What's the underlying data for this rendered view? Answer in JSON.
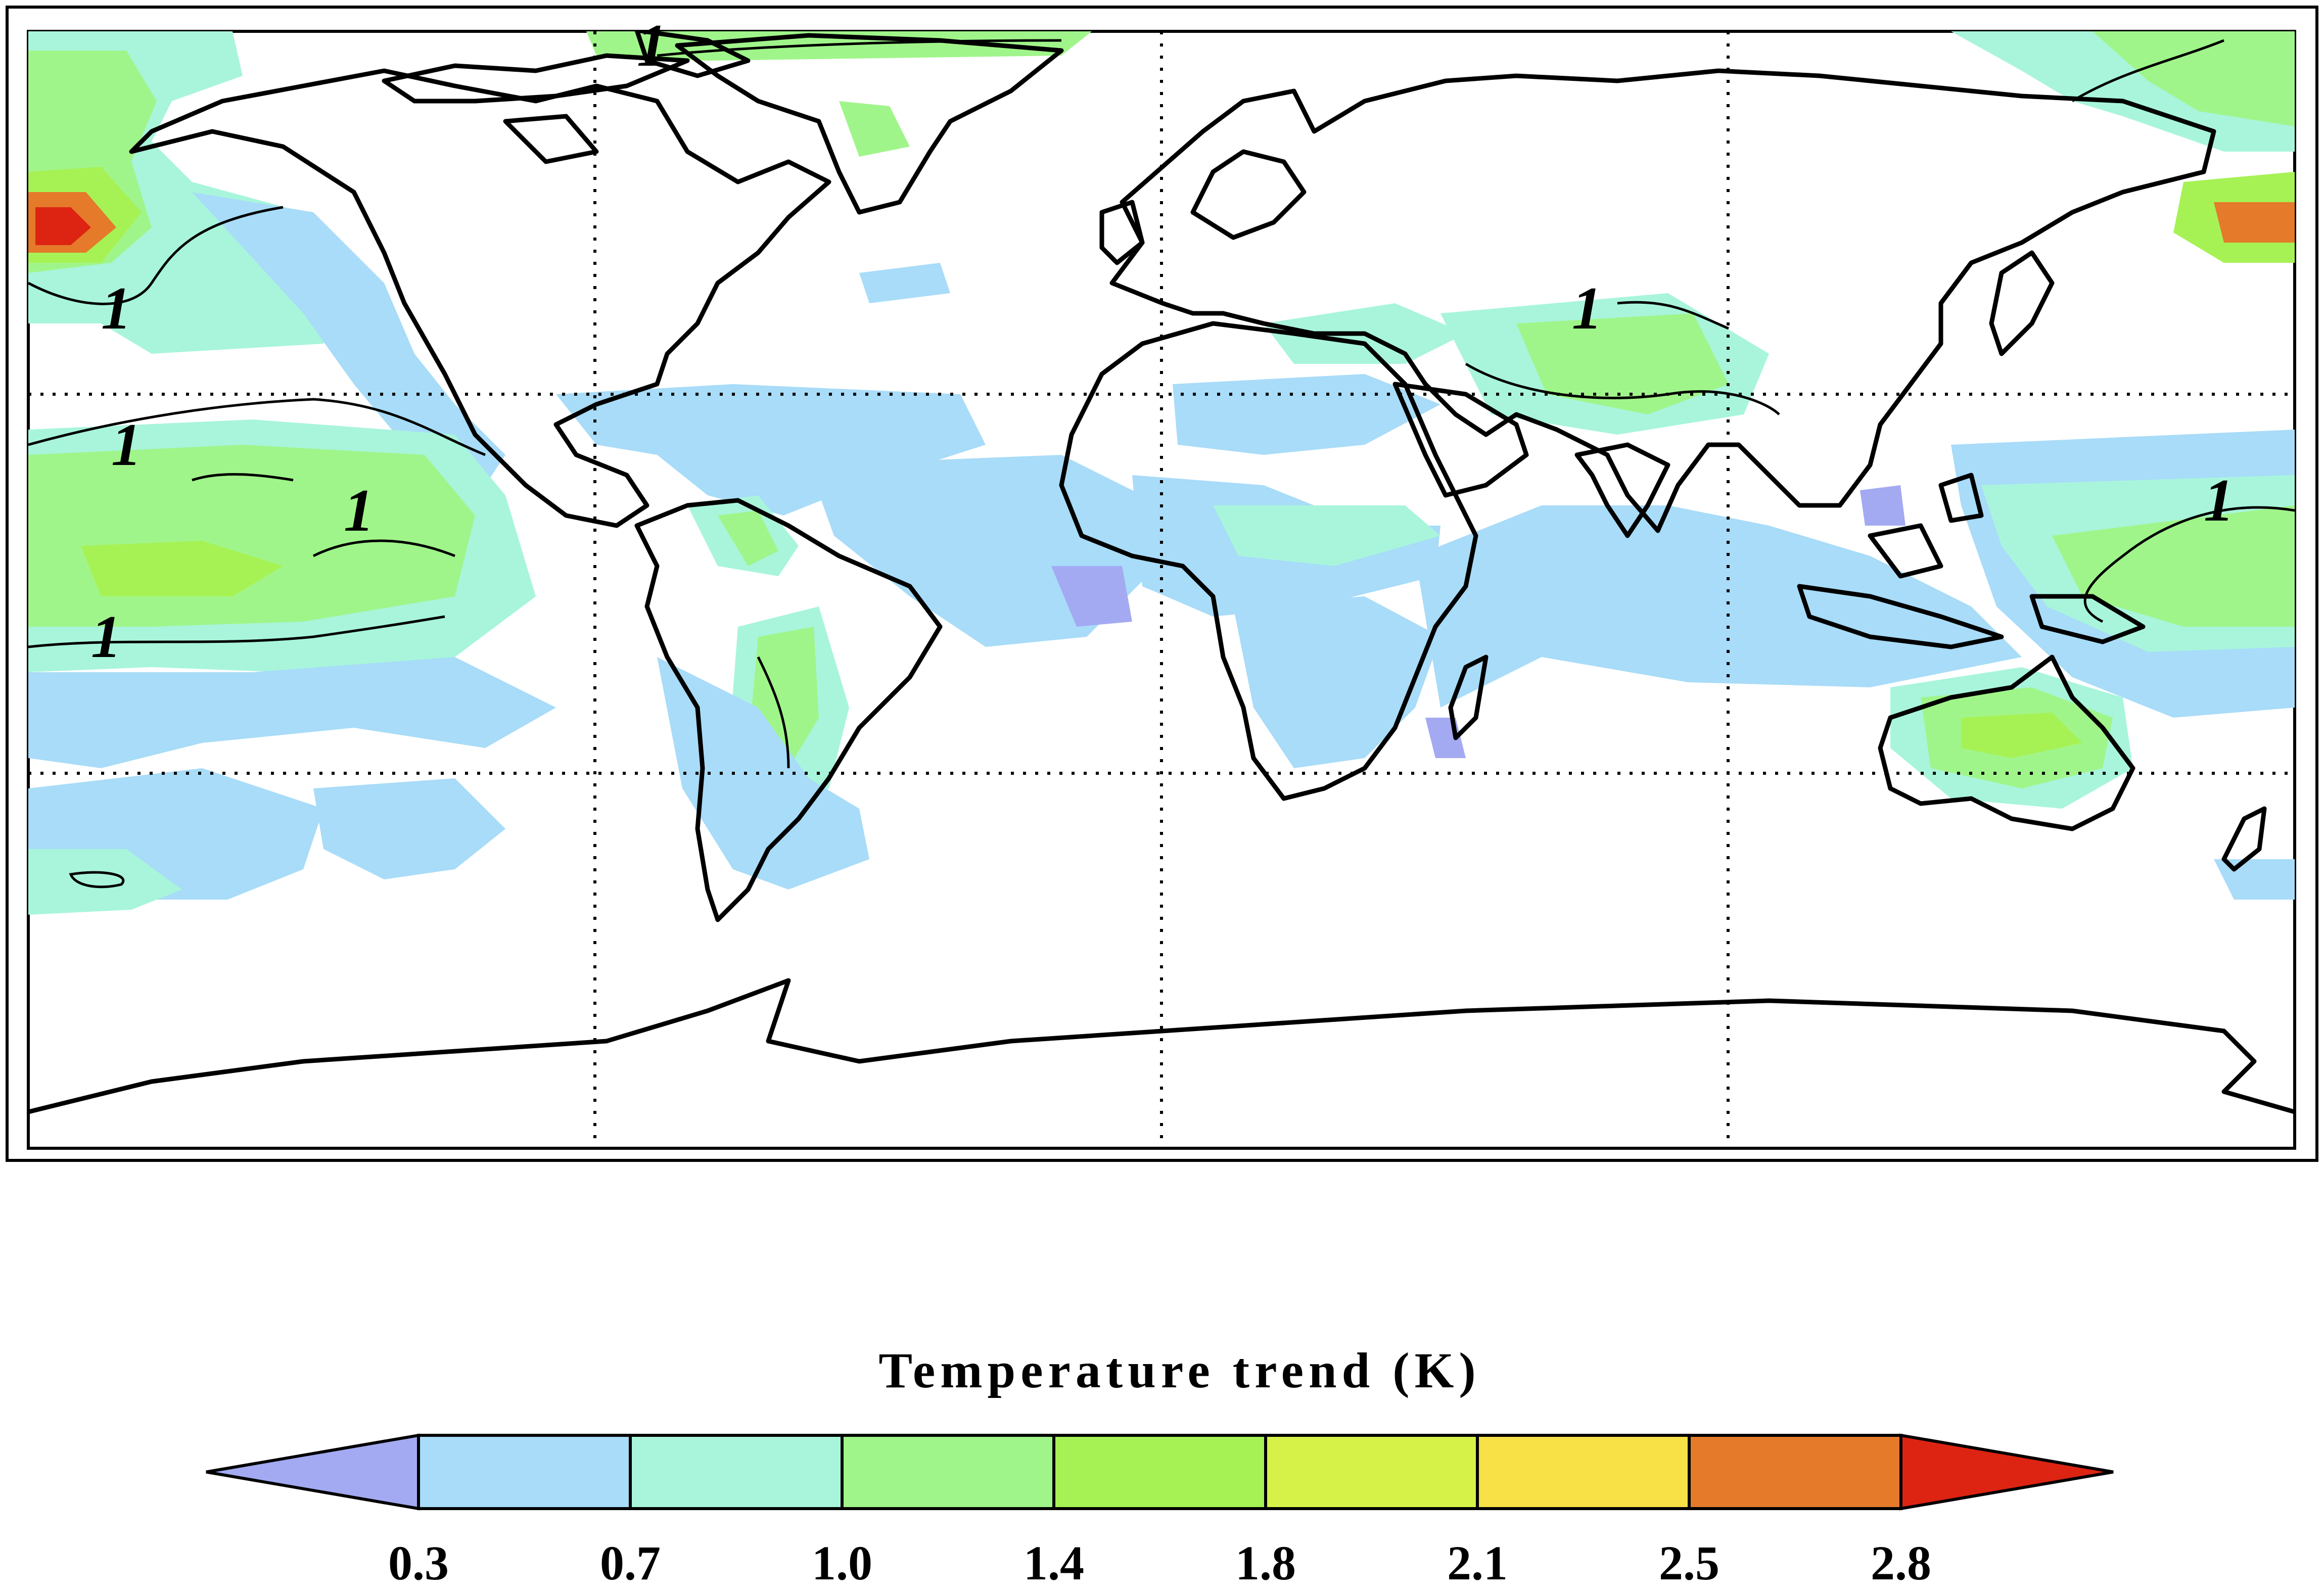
{
  "colorbar": {
    "title": "Temperature trend (K)",
    "levels": [
      "0.3",
      "0.7",
      "1.0",
      "1.4",
      "1.8",
      "2.1",
      "2.5",
      "2.8"
    ],
    "colors": [
      "#a3aaf2",
      "#a8dcf8",
      "#a8f5dc",
      "#a0f58a",
      "#a6f254",
      "#d6f248",
      "#f8e146",
      "#e47a2a",
      "#dd2412"
    ]
  },
  "contour_labels": [
    "1",
    "1",
    "1",
    "1",
    "1",
    "1",
    "1"
  ],
  "map": {
    "projection": "equirectangular",
    "grid": "dotted",
    "coastlines": true,
    "fill_color_low": "#a8dcf8",
    "fill_color_mid": "#a8f5dc",
    "fill_color_high": "#a0f58a",
    "hotspot_color": "#dd2412"
  }
}
